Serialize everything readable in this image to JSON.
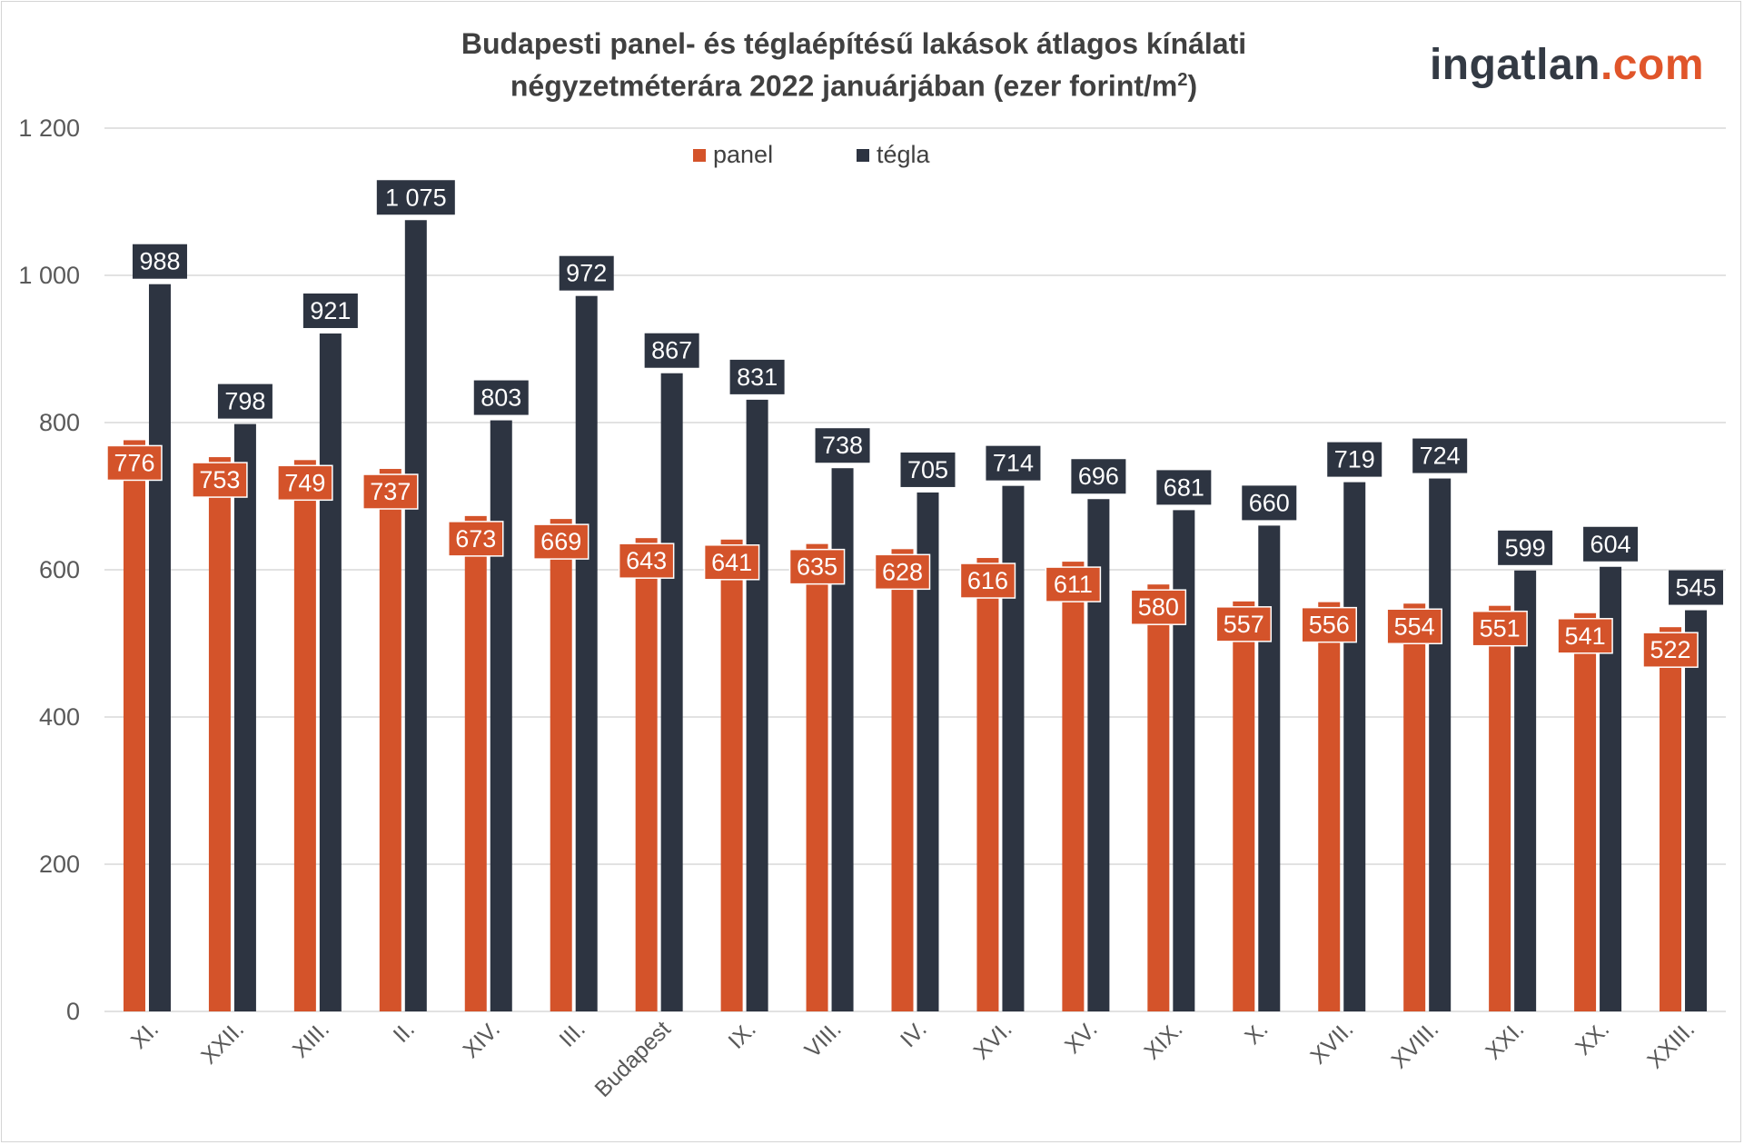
{
  "header": {
    "title_line1": "Budapesti panel- és téglaépítésű lakások átlagos kínálati",
    "title_line2_main": "négyzetméterára 2022 januárjában (ezer forint/m",
    "title_line2_sup": "2",
    "title_line2_end": ")"
  },
  "logo": {
    "part1": "ingatlan",
    "part2": ".com"
  },
  "legend": {
    "panel": "panel",
    "tegla": "tégla"
  },
  "colors": {
    "panel": "#d4532a",
    "tegla": "#2d3441",
    "grid": "#d9d9d9",
    "axis_text": "#595959"
  },
  "chart_data": {
    "type": "bar",
    "title": "Budapesti panel- és téglaépítésű lakások átlagos kínálati négyzetméterára 2022 januárjában (ezer forint/m2)",
    "xlabel": "",
    "ylabel": "",
    "ylim": [
      0,
      1200
    ],
    "yticks": [
      0,
      200,
      400,
      600,
      800,
      1000,
      1200
    ],
    "ytick_labels": [
      "0",
      "200",
      "400",
      "600",
      "800",
      "1 000",
      "1 200"
    ],
    "grid": true,
    "legend_position": "top-center",
    "categories": [
      "XI.",
      "XXII.",
      "XIII.",
      "II.",
      "XIV.",
      "III.",
      "Budapest",
      "IX.",
      "VIII.",
      "IV.",
      "XVI.",
      "XV.",
      "XIX.",
      "X.",
      "XVII.",
      "XVIII.",
      "XXI.",
      "XX.",
      "XXIII."
    ],
    "series": [
      {
        "name": "panel",
        "values": [
          776,
          753,
          749,
          737,
          673,
          669,
          643,
          641,
          635,
          628,
          616,
          611,
          580,
          557,
          556,
          554,
          551,
          541,
          522
        ]
      },
      {
        "name": "tégla",
        "values": [
          988,
          798,
          921,
          1075,
          803,
          972,
          867,
          831,
          738,
          705,
          714,
          696,
          681,
          660,
          719,
          724,
          599,
          604,
          545
        ]
      }
    ],
    "value_labels": {
      "panel": [
        "776",
        "753",
        "749",
        "737",
        "673",
        "669",
        "643",
        "641",
        "635",
        "628",
        "616",
        "611",
        "580",
        "557",
        "556",
        "554",
        "551",
        "541",
        "522"
      ],
      "tegla": [
        "988",
        "798",
        "921",
        "1 075",
        "803",
        "972",
        "867",
        "831",
        "738",
        "705",
        "714",
        "696",
        "681",
        "660",
        "719",
        "724",
        "599",
        "604",
        "545"
      ]
    }
  }
}
